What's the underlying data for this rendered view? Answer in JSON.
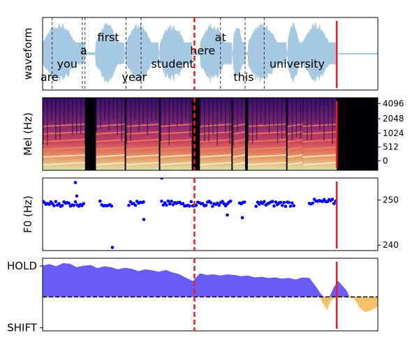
{
  "chart_data": [
    {
      "type": "line",
      "panel": "waveform",
      "ylabel": "waveform",
      "words": [
        {
          "text": "are",
          "t": 0.05,
          "row": "low"
        },
        {
          "text": "you",
          "t": 0.18,
          "row": "mid"
        },
        {
          "text": "a",
          "t": 0.3,
          "row": "upmid"
        },
        {
          "text": "first",
          "t": 0.48,
          "row": "top"
        },
        {
          "text": "year",
          "t": 0.67,
          "row": "low"
        },
        {
          "text": "student",
          "t": 0.95,
          "row": "mid"
        },
        {
          "text": "here",
          "t": 1.17,
          "row": "upmid"
        },
        {
          "text": "at",
          "t": 1.3,
          "row": "top"
        },
        {
          "text": "this",
          "t": 1.47,
          "row": "low"
        },
        {
          "text": "university",
          "t": 1.86,
          "row": "mid"
        }
      ],
      "word_boundaries": [
        0.07,
        0.29,
        0.31,
        0.61,
        0.72,
        1.3,
        1.48,
        1.62
      ],
      "dashed_marker_t": 1.11,
      "solid_marker_t": 2.15,
      "xlim": [
        0,
        2.45
      ],
      "color": "#a6c8e1"
    },
    {
      "type": "heatmap",
      "panel": "mel",
      "ylabel": "Mel (Hz)",
      "yticks": [
        "4096",
        "2048",
        "1024",
        "512",
        "0"
      ],
      "mel_fraction": [
        0.08,
        0.29,
        0.49,
        0.68,
        0.87
      ],
      "speech_segments": [
        [
          0.0,
          0.31
        ],
        [
          0.39,
          0.6
        ],
        [
          0.61,
          0.85
        ],
        [
          0.86,
          1.09
        ],
        [
          1.15,
          1.38
        ],
        [
          1.39,
          1.48
        ],
        [
          1.5,
          1.78
        ],
        [
          1.79,
          1.9
        ],
        [
          1.9,
          2.15
        ]
      ],
      "colormap": "magma"
    },
    {
      "type": "scatter",
      "panel": "f0",
      "ylabel": "F0 (Hz)",
      "yticks": [
        250,
        240
      ],
      "ylim": [
        238.8,
        254.9
      ],
      "outliers": [
        {
          "t": 0.24,
          "v": 253.9
        },
        {
          "t": 0.25,
          "v": 250.9
        },
        {
          "t": 0.51,
          "v": 239.5
        },
        {
          "t": 0.74,
          "v": 245.7
        },
        {
          "t": 0.87,
          "v": 254.9
        },
        {
          "t": 1.35,
          "v": 246.7
        },
        {
          "t": 1.46,
          "v": 246.1
        }
      ],
      "voiced_segments": [
        [
          0.0,
          0.31
        ],
        [
          0.42,
          0.51
        ],
        [
          0.63,
          0.75
        ],
        [
          0.87,
          1.38
        ],
        [
          1.44,
          1.48
        ],
        [
          1.56,
          1.84
        ],
        [
          1.95,
          2.15
        ]
      ],
      "color": "#0000ff"
    },
    {
      "type": "area",
      "panel": "turn",
      "yticks": [
        "HOLD",
        "SHIFT"
      ],
      "ylim": [
        -1.1,
        1.25
      ],
      "hold_color": "#6a5cf8",
      "shift_color": "#f7c26b",
      "curve": [
        [
          0.0,
          1.0
        ],
        [
          0.05,
          1.05
        ],
        [
          0.1,
          0.98
        ],
        [
          0.15,
          1.08
        ],
        [
          0.2,
          1.06
        ],
        [
          0.25,
          0.95
        ],
        [
          0.3,
          1.0
        ],
        [
          0.35,
          1.02
        ],
        [
          0.4,
          0.92
        ],
        [
          0.45,
          0.98
        ],
        [
          0.5,
          0.95
        ],
        [
          0.55,
          0.88
        ],
        [
          0.6,
          0.93
        ],
        [
          0.65,
          0.9
        ],
        [
          0.7,
          0.82
        ],
        [
          0.75,
          0.88
        ],
        [
          0.8,
          0.85
        ],
        [
          0.85,
          0.8
        ],
        [
          0.9,
          0.86
        ],
        [
          0.95,
          0.78
        ],
        [
          1.0,
          0.72
        ],
        [
          1.05,
          0.6
        ],
        [
          1.1,
          0.5
        ],
        [
          1.15,
          0.75
        ],
        [
          1.2,
          0.7
        ],
        [
          1.25,
          0.72
        ],
        [
          1.3,
          0.68
        ],
        [
          1.35,
          0.72
        ],
        [
          1.4,
          0.7
        ],
        [
          1.45,
          0.66
        ],
        [
          1.5,
          0.68
        ],
        [
          1.55,
          0.62
        ],
        [
          1.6,
          0.64
        ],
        [
          1.65,
          0.6
        ],
        [
          1.7,
          0.62
        ],
        [
          1.75,
          0.58
        ],
        [
          1.8,
          0.6
        ],
        [
          1.85,
          0.55
        ],
        [
          1.9,
          0.62
        ],
        [
          1.95,
          0.6
        ],
        [
          2.0,
          0.3
        ],
        [
          2.03,
          0.1
        ],
        [
          2.05,
          -0.2
        ],
        [
          2.08,
          -0.4
        ],
        [
          2.1,
          -0.15
        ],
        [
          2.13,
          0.3
        ],
        [
          2.16,
          0.5
        ],
        [
          2.19,
          0.35
        ],
        [
          2.22,
          0.2
        ],
        [
          2.24,
          0.0
        ],
        [
          2.28,
          -0.05
        ],
        [
          2.32,
          -0.35
        ],
        [
          2.36,
          -0.48
        ],
        [
          2.4,
          -0.42
        ],
        [
          2.45,
          -0.3
        ]
      ]
    }
  ]
}
